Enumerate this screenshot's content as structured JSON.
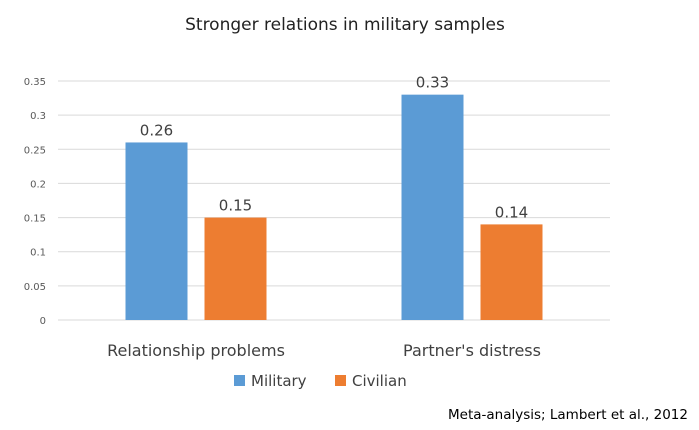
{
  "chart_data": {
    "type": "bar",
    "title": "Stronger relations in military samples",
    "xlabel": "",
    "ylabel": "",
    "categories": [
      "Relationship problems",
      "Partner's distress"
    ],
    "series": [
      {
        "name": "Military",
        "color": "#5b9bd5",
        "values": [
          0.26,
          0.33
        ]
      },
      {
        "name": "Civilian",
        "color": "#ed7d31",
        "values": [
          0.15,
          0.14
        ]
      }
    ],
    "ylim": [
      0,
      0.35
    ],
    "yticks": [
      "0",
      "0.05",
      "0.1",
      "0.15",
      "0.2",
      "0.25",
      "0.3",
      "0.35"
    ],
    "data_labels": [
      [
        "0.26",
        "0.33"
      ],
      [
        "0.15",
        "0.14"
      ]
    ],
    "grid": true,
    "legend_position": "bottom",
    "annotation": "Meta-analysis; Lambert et al., 2012"
  }
}
